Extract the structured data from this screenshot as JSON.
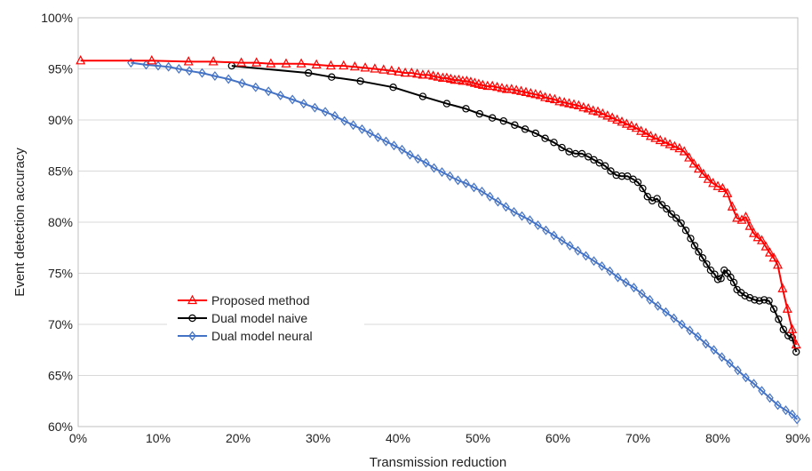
{
  "chart_data": {
    "type": "line",
    "title": "",
    "xlabel": "Transmission reduction",
    "ylabel": "Event detection accuracy",
    "xlim": [
      0,
      90
    ],
    "ylim": [
      60,
      100
    ],
    "x_ticks": [
      "0%",
      "10%",
      "20%",
      "30%",
      "40%",
      "50%",
      "60%",
      "70%",
      "80%",
      "90%"
    ],
    "y_ticks": [
      "60%",
      "65%",
      "70%",
      "75%",
      "80%",
      "85%",
      "90%",
      "95%",
      "100%"
    ],
    "grid": "horizontal",
    "legend_position": "lower-left",
    "series": [
      {
        "name": "Proposed method",
        "color": "#ff0000",
        "marker": "triangle",
        "points": [
          [
            0.3,
            95.8
          ],
          [
            9.2,
            95.8
          ],
          [
            13.8,
            95.7
          ],
          [
            16.9,
            95.7
          ],
          [
            20.4,
            95.6
          ],
          [
            22.3,
            95.6
          ],
          [
            24.1,
            95.5
          ],
          [
            26.0,
            95.5
          ],
          [
            27.9,
            95.5
          ],
          [
            29.8,
            95.4
          ],
          [
            31.6,
            95.3
          ],
          [
            33.2,
            95.3
          ],
          [
            34.6,
            95.2
          ],
          [
            35.9,
            95.1
          ],
          [
            37.1,
            95.0
          ],
          [
            38.2,
            94.9
          ],
          [
            39.2,
            94.8
          ],
          [
            40.1,
            94.7
          ],
          [
            40.9,
            94.6
          ],
          [
            41.7,
            94.6
          ],
          [
            42.4,
            94.5
          ],
          [
            43.1,
            94.4
          ],
          [
            43.8,
            94.4
          ],
          [
            44.4,
            94.3
          ],
          [
            45.0,
            94.2
          ],
          [
            45.6,
            94.1
          ],
          [
            46.1,
            94.1
          ],
          [
            46.6,
            94.0
          ],
          [
            47.1,
            93.9
          ],
          [
            47.6,
            93.9
          ],
          [
            48.1,
            93.8
          ],
          [
            48.6,
            93.8
          ],
          [
            49.1,
            93.7
          ],
          [
            49.6,
            93.6
          ],
          [
            50.1,
            93.5
          ],
          [
            50.6,
            93.4
          ],
          [
            51.2,
            93.3
          ],
          [
            51.8,
            93.3
          ],
          [
            52.4,
            93.2
          ],
          [
            53.0,
            93.1
          ],
          [
            53.6,
            93.0
          ],
          [
            54.2,
            93.0
          ],
          [
            54.8,
            92.9
          ],
          [
            55.4,
            92.8
          ],
          [
            56.0,
            92.7
          ],
          [
            56.6,
            92.6
          ],
          [
            57.2,
            92.5
          ],
          [
            57.8,
            92.4
          ],
          [
            58.4,
            92.2
          ],
          [
            59.0,
            92.1
          ],
          [
            59.6,
            92.0
          ],
          [
            60.2,
            91.8
          ],
          [
            60.8,
            91.7
          ],
          [
            61.4,
            91.6
          ],
          [
            62.0,
            91.5
          ],
          [
            62.6,
            91.4
          ],
          [
            63.2,
            91.2
          ],
          [
            63.8,
            91.1
          ],
          [
            64.4,
            90.9
          ],
          [
            65.0,
            90.8
          ],
          [
            65.6,
            90.6
          ],
          [
            66.2,
            90.4
          ],
          [
            66.8,
            90.2
          ],
          [
            67.4,
            90.0
          ],
          [
            68.0,
            89.8
          ],
          [
            68.6,
            89.6
          ],
          [
            69.2,
            89.4
          ],
          [
            69.8,
            89.2
          ],
          [
            70.4,
            88.9
          ],
          [
            71.0,
            88.7
          ],
          [
            71.6,
            88.4
          ],
          [
            72.2,
            88.2
          ],
          [
            72.8,
            88.0
          ],
          [
            73.4,
            87.8
          ],
          [
            74.0,
            87.6
          ],
          [
            74.6,
            87.4
          ],
          [
            75.2,
            87.2
          ],
          [
            75.8,
            86.9
          ],
          [
            76.4,
            86.3
          ],
          [
            77.0,
            85.7
          ],
          [
            77.6,
            85.2
          ],
          [
            78.2,
            84.7
          ],
          [
            78.8,
            84.2
          ],
          [
            79.4,
            83.8
          ],
          [
            80.0,
            83.5
          ],
          [
            80.6,
            83.3
          ],
          [
            81.2,
            82.8
          ],
          [
            81.8,
            81.5
          ],
          [
            82.4,
            80.4
          ],
          [
            83.0,
            80.2
          ],
          [
            83.5,
            80.5
          ],
          [
            84.0,
            79.6
          ],
          [
            84.5,
            78.9
          ],
          [
            85.0,
            78.5
          ],
          [
            85.5,
            78.2
          ],
          [
            86.0,
            77.6
          ],
          [
            86.5,
            77.0
          ],
          [
            87.0,
            76.5
          ],
          [
            87.5,
            75.8
          ],
          [
            88.1,
            73.5
          ],
          [
            88.7,
            71.5
          ],
          [
            89.3,
            69.5
          ],
          [
            89.8,
            68.0
          ]
        ]
      },
      {
        "name": "Dual model naive",
        "color": "#000000",
        "marker": "circle",
        "points": [
          [
            19.2,
            95.3
          ],
          [
            28.8,
            94.6
          ],
          [
            31.7,
            94.2
          ],
          [
            35.3,
            93.8
          ],
          [
            39.4,
            93.2
          ],
          [
            43.1,
            92.3
          ],
          [
            46.1,
            91.6
          ],
          [
            48.5,
            91.1
          ],
          [
            50.2,
            90.6
          ],
          [
            51.8,
            90.2
          ],
          [
            53.2,
            89.9
          ],
          [
            54.6,
            89.5
          ],
          [
            55.9,
            89.1
          ],
          [
            57.2,
            88.7
          ],
          [
            58.4,
            88.2
          ],
          [
            59.5,
            87.8
          ],
          [
            60.5,
            87.3
          ],
          [
            61.4,
            86.9
          ],
          [
            62.2,
            86.7
          ],
          [
            63.0,
            86.7
          ],
          [
            63.8,
            86.4
          ],
          [
            64.5,
            86.1
          ],
          [
            65.2,
            85.8
          ],
          [
            65.9,
            85.5
          ],
          [
            66.6,
            85.0
          ],
          [
            67.3,
            84.6
          ],
          [
            68.0,
            84.5
          ],
          [
            68.7,
            84.5
          ],
          [
            69.4,
            84.2
          ],
          [
            70.0,
            83.9
          ],
          [
            70.6,
            83.3
          ],
          [
            71.2,
            82.5
          ],
          [
            71.8,
            82.1
          ],
          [
            72.4,
            82.3
          ],
          [
            73.0,
            81.7
          ],
          [
            73.6,
            81.3
          ],
          [
            74.2,
            80.8
          ],
          [
            74.8,
            80.4
          ],
          [
            75.4,
            79.9
          ],
          [
            76.0,
            79.2
          ],
          [
            76.6,
            78.4
          ],
          [
            77.1,
            77.7
          ],
          [
            77.6,
            77.1
          ],
          [
            78.1,
            76.5
          ],
          [
            78.6,
            75.9
          ],
          [
            79.1,
            75.3
          ],
          [
            79.6,
            74.9
          ],
          [
            80.0,
            74.4
          ],
          [
            80.4,
            74.5
          ],
          [
            80.8,
            75.3
          ],
          [
            81.2,
            75.0
          ],
          [
            81.6,
            74.6
          ],
          [
            82.0,
            74.1
          ],
          [
            82.4,
            73.4
          ],
          [
            82.9,
            73.1
          ],
          [
            83.4,
            72.8
          ],
          [
            84.0,
            72.6
          ],
          [
            84.6,
            72.4
          ],
          [
            85.2,
            72.3
          ],
          [
            85.8,
            72.4
          ],
          [
            86.4,
            72.3
          ],
          [
            87.0,
            71.5
          ],
          [
            87.6,
            70.5
          ],
          [
            88.2,
            69.5
          ],
          [
            88.8,
            68.9
          ],
          [
            89.3,
            68.7
          ],
          [
            89.8,
            67.3
          ]
        ]
      },
      {
        "name": "Dual model neural",
        "color": "#4472c4",
        "marker": "diamond",
        "points": [
          [
            6.6,
            95.6
          ],
          [
            8.5,
            95.4
          ],
          [
            10.0,
            95.3
          ],
          [
            11.3,
            95.2
          ],
          [
            12.6,
            95.0
          ],
          [
            13.9,
            94.8
          ],
          [
            15.5,
            94.6
          ],
          [
            17.1,
            94.3
          ],
          [
            18.8,
            94.0
          ],
          [
            20.5,
            93.6
          ],
          [
            22.2,
            93.2
          ],
          [
            23.8,
            92.8
          ],
          [
            25.3,
            92.4
          ],
          [
            26.8,
            92.0
          ],
          [
            28.2,
            91.6
          ],
          [
            29.6,
            91.2
          ],
          [
            30.9,
            90.8
          ],
          [
            32.1,
            90.4
          ],
          [
            33.3,
            89.9
          ],
          [
            34.4,
            89.5
          ],
          [
            35.5,
            89.1
          ],
          [
            36.5,
            88.7
          ],
          [
            37.5,
            88.3
          ],
          [
            38.5,
            87.9
          ],
          [
            39.5,
            87.5
          ],
          [
            40.5,
            87.1
          ],
          [
            41.5,
            86.6
          ],
          [
            42.5,
            86.2
          ],
          [
            43.5,
            85.8
          ],
          [
            44.5,
            85.3
          ],
          [
            45.5,
            84.9
          ],
          [
            46.5,
            84.5
          ],
          [
            47.5,
            84.1
          ],
          [
            48.5,
            83.8
          ],
          [
            49.5,
            83.4
          ],
          [
            50.5,
            83.0
          ],
          [
            51.5,
            82.5
          ],
          [
            52.5,
            82.0
          ],
          [
            53.5,
            81.5
          ],
          [
            54.5,
            81.0
          ],
          [
            55.5,
            80.6
          ],
          [
            56.5,
            80.2
          ],
          [
            57.5,
            79.7
          ],
          [
            58.5,
            79.2
          ],
          [
            59.5,
            78.7
          ],
          [
            60.5,
            78.2
          ],
          [
            61.5,
            77.7
          ],
          [
            62.5,
            77.2
          ],
          [
            63.5,
            76.7
          ],
          [
            64.5,
            76.2
          ],
          [
            65.5,
            75.7
          ],
          [
            66.5,
            75.2
          ],
          [
            67.5,
            74.6
          ],
          [
            68.5,
            74.1
          ],
          [
            69.5,
            73.6
          ],
          [
            70.5,
            73.0
          ],
          [
            71.5,
            72.4
          ],
          [
            72.5,
            71.8
          ],
          [
            73.5,
            71.2
          ],
          [
            74.5,
            70.6
          ],
          [
            75.5,
            70.0
          ],
          [
            76.5,
            69.4
          ],
          [
            77.5,
            68.8
          ],
          [
            78.5,
            68.1
          ],
          [
            79.5,
            67.5
          ],
          [
            80.5,
            66.8
          ],
          [
            81.5,
            66.2
          ],
          [
            82.5,
            65.5
          ],
          [
            83.5,
            64.8
          ],
          [
            84.5,
            64.2
          ],
          [
            85.5,
            63.5
          ],
          [
            86.5,
            62.8
          ],
          [
            87.5,
            62.1
          ],
          [
            88.5,
            61.6
          ],
          [
            89.3,
            61.2
          ],
          [
            89.9,
            60.7
          ]
        ]
      }
    ]
  }
}
